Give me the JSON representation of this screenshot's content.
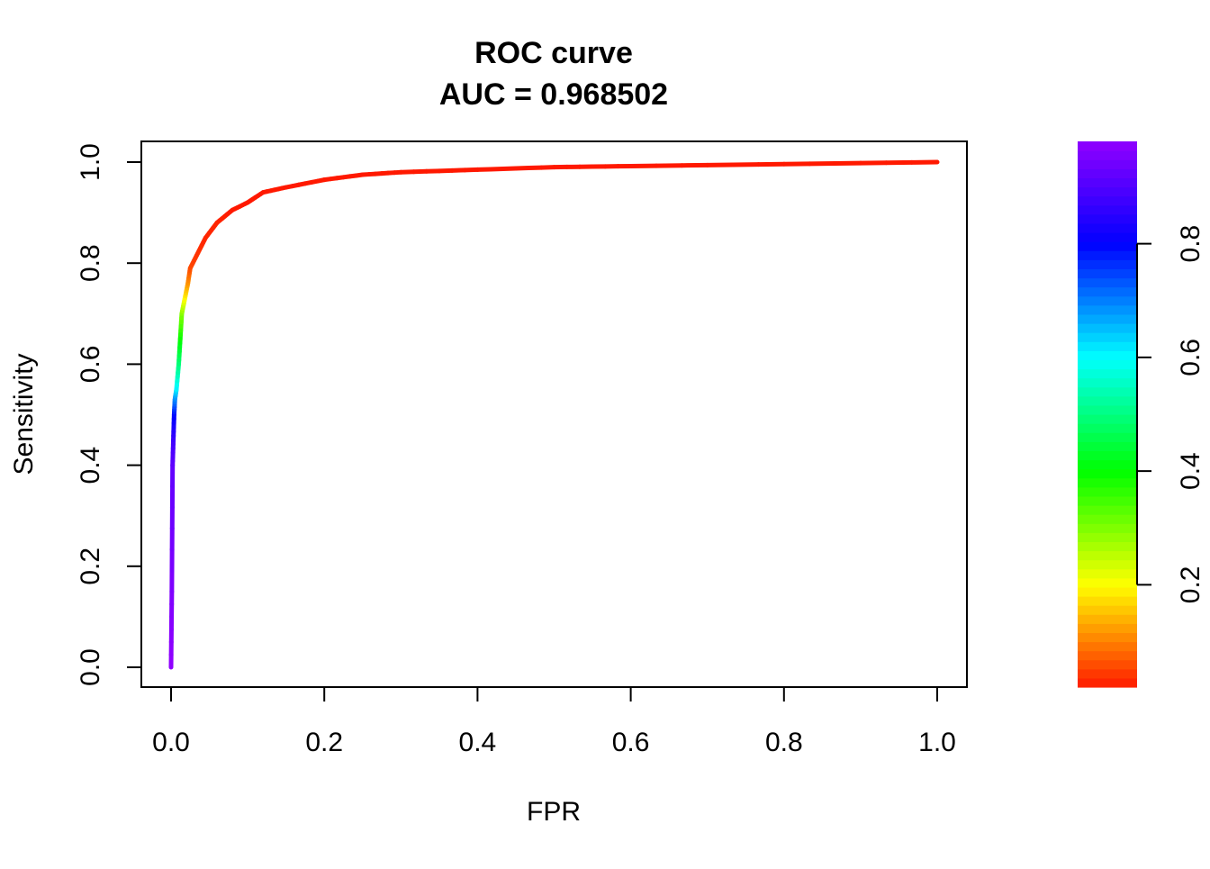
{
  "chart_data": {
    "type": "line",
    "title": "ROC curve",
    "subtitle": "AUC = 0.968502",
    "xlabel": "FPR",
    "ylabel": "Sensitivity",
    "xlim": [
      0,
      1
    ],
    "ylim": [
      0,
      1
    ],
    "xticks": [
      0.0,
      0.2,
      0.4,
      0.6,
      0.8,
      1.0
    ],
    "yticks": [
      0.0,
      0.2,
      0.4,
      0.6,
      0.8,
      1.0
    ],
    "xtick_labels": [
      "0.0",
      "0.2",
      "0.4",
      "0.6",
      "0.8",
      "1.0"
    ],
    "ytick_labels": [
      "0.0",
      "0.2",
      "0.4",
      "0.6",
      "0.8",
      "1.0"
    ],
    "grid": false,
    "colorbar": {
      "range": [
        0.02,
        0.98
      ],
      "ticks": [
        0.2,
        0.4,
        0.6,
        0.8
      ],
      "tick_labels": [
        "0.2",
        "0.4",
        "0.6",
        "0.8"
      ],
      "colormap": "rainbow (red to violet)",
      "stops": [
        {
          "value": 0.0,
          "color": "#ff0000"
        },
        {
          "value": 0.2,
          "color": "#ffff00"
        },
        {
          "value": 0.4,
          "color": "#00ff00"
        },
        {
          "value": 0.6,
          "color": "#00ffff"
        },
        {
          "value": 0.8,
          "color": "#0000ff"
        },
        {
          "value": 1.0,
          "color": "#a000ff"
        }
      ]
    },
    "series": [
      {
        "points": [
          {
            "x": 0.0,
            "y": 0.0,
            "t": 0.98
          },
          {
            "x": 0.001,
            "y": 0.15,
            "t": 0.96
          },
          {
            "x": 0.002,
            "y": 0.4,
            "t": 0.92
          },
          {
            "x": 0.003,
            "y": 0.45,
            "t": 0.88
          },
          {
            "x": 0.004,
            "y": 0.5,
            "t": 0.8
          },
          {
            "x": 0.005,
            "y": 0.53,
            "t": 0.7
          },
          {
            "x": 0.007,
            "y": 0.55,
            "t": 0.62
          },
          {
            "x": 0.01,
            "y": 0.6,
            "t": 0.5
          },
          {
            "x": 0.012,
            "y": 0.65,
            "t": 0.4
          },
          {
            "x": 0.014,
            "y": 0.7,
            "t": 0.3
          },
          {
            "x": 0.018,
            "y": 0.73,
            "t": 0.2
          },
          {
            "x": 0.022,
            "y": 0.76,
            "t": 0.12
          },
          {
            "x": 0.025,
            "y": 0.79,
            "t": 0.06
          },
          {
            "x": 0.035,
            "y": 0.82,
            "t": 0.04
          },
          {
            "x": 0.045,
            "y": 0.85,
            "t": 0.03
          },
          {
            "x": 0.06,
            "y": 0.88,
            "t": 0.03
          },
          {
            "x": 0.08,
            "y": 0.905,
            "t": 0.02
          },
          {
            "x": 0.1,
            "y": 0.92,
            "t": 0.02
          },
          {
            "x": 0.12,
            "y": 0.94,
            "t": 0.02
          },
          {
            "x": 0.15,
            "y": 0.95,
            "t": 0.02
          },
          {
            "x": 0.2,
            "y": 0.965,
            "t": 0.02
          },
          {
            "x": 0.25,
            "y": 0.975,
            "t": 0.02
          },
          {
            "x": 0.3,
            "y": 0.98,
            "t": 0.02
          },
          {
            "x": 0.4,
            "y": 0.985,
            "t": 0.02
          },
          {
            "x": 0.5,
            "y": 0.99,
            "t": 0.02
          },
          {
            "x": 0.6,
            "y": 0.992,
            "t": 0.02
          },
          {
            "x": 0.8,
            "y": 0.996,
            "t": 0.02
          },
          {
            "x": 1.0,
            "y": 1.0,
            "t": 0.02
          }
        ]
      }
    ]
  }
}
